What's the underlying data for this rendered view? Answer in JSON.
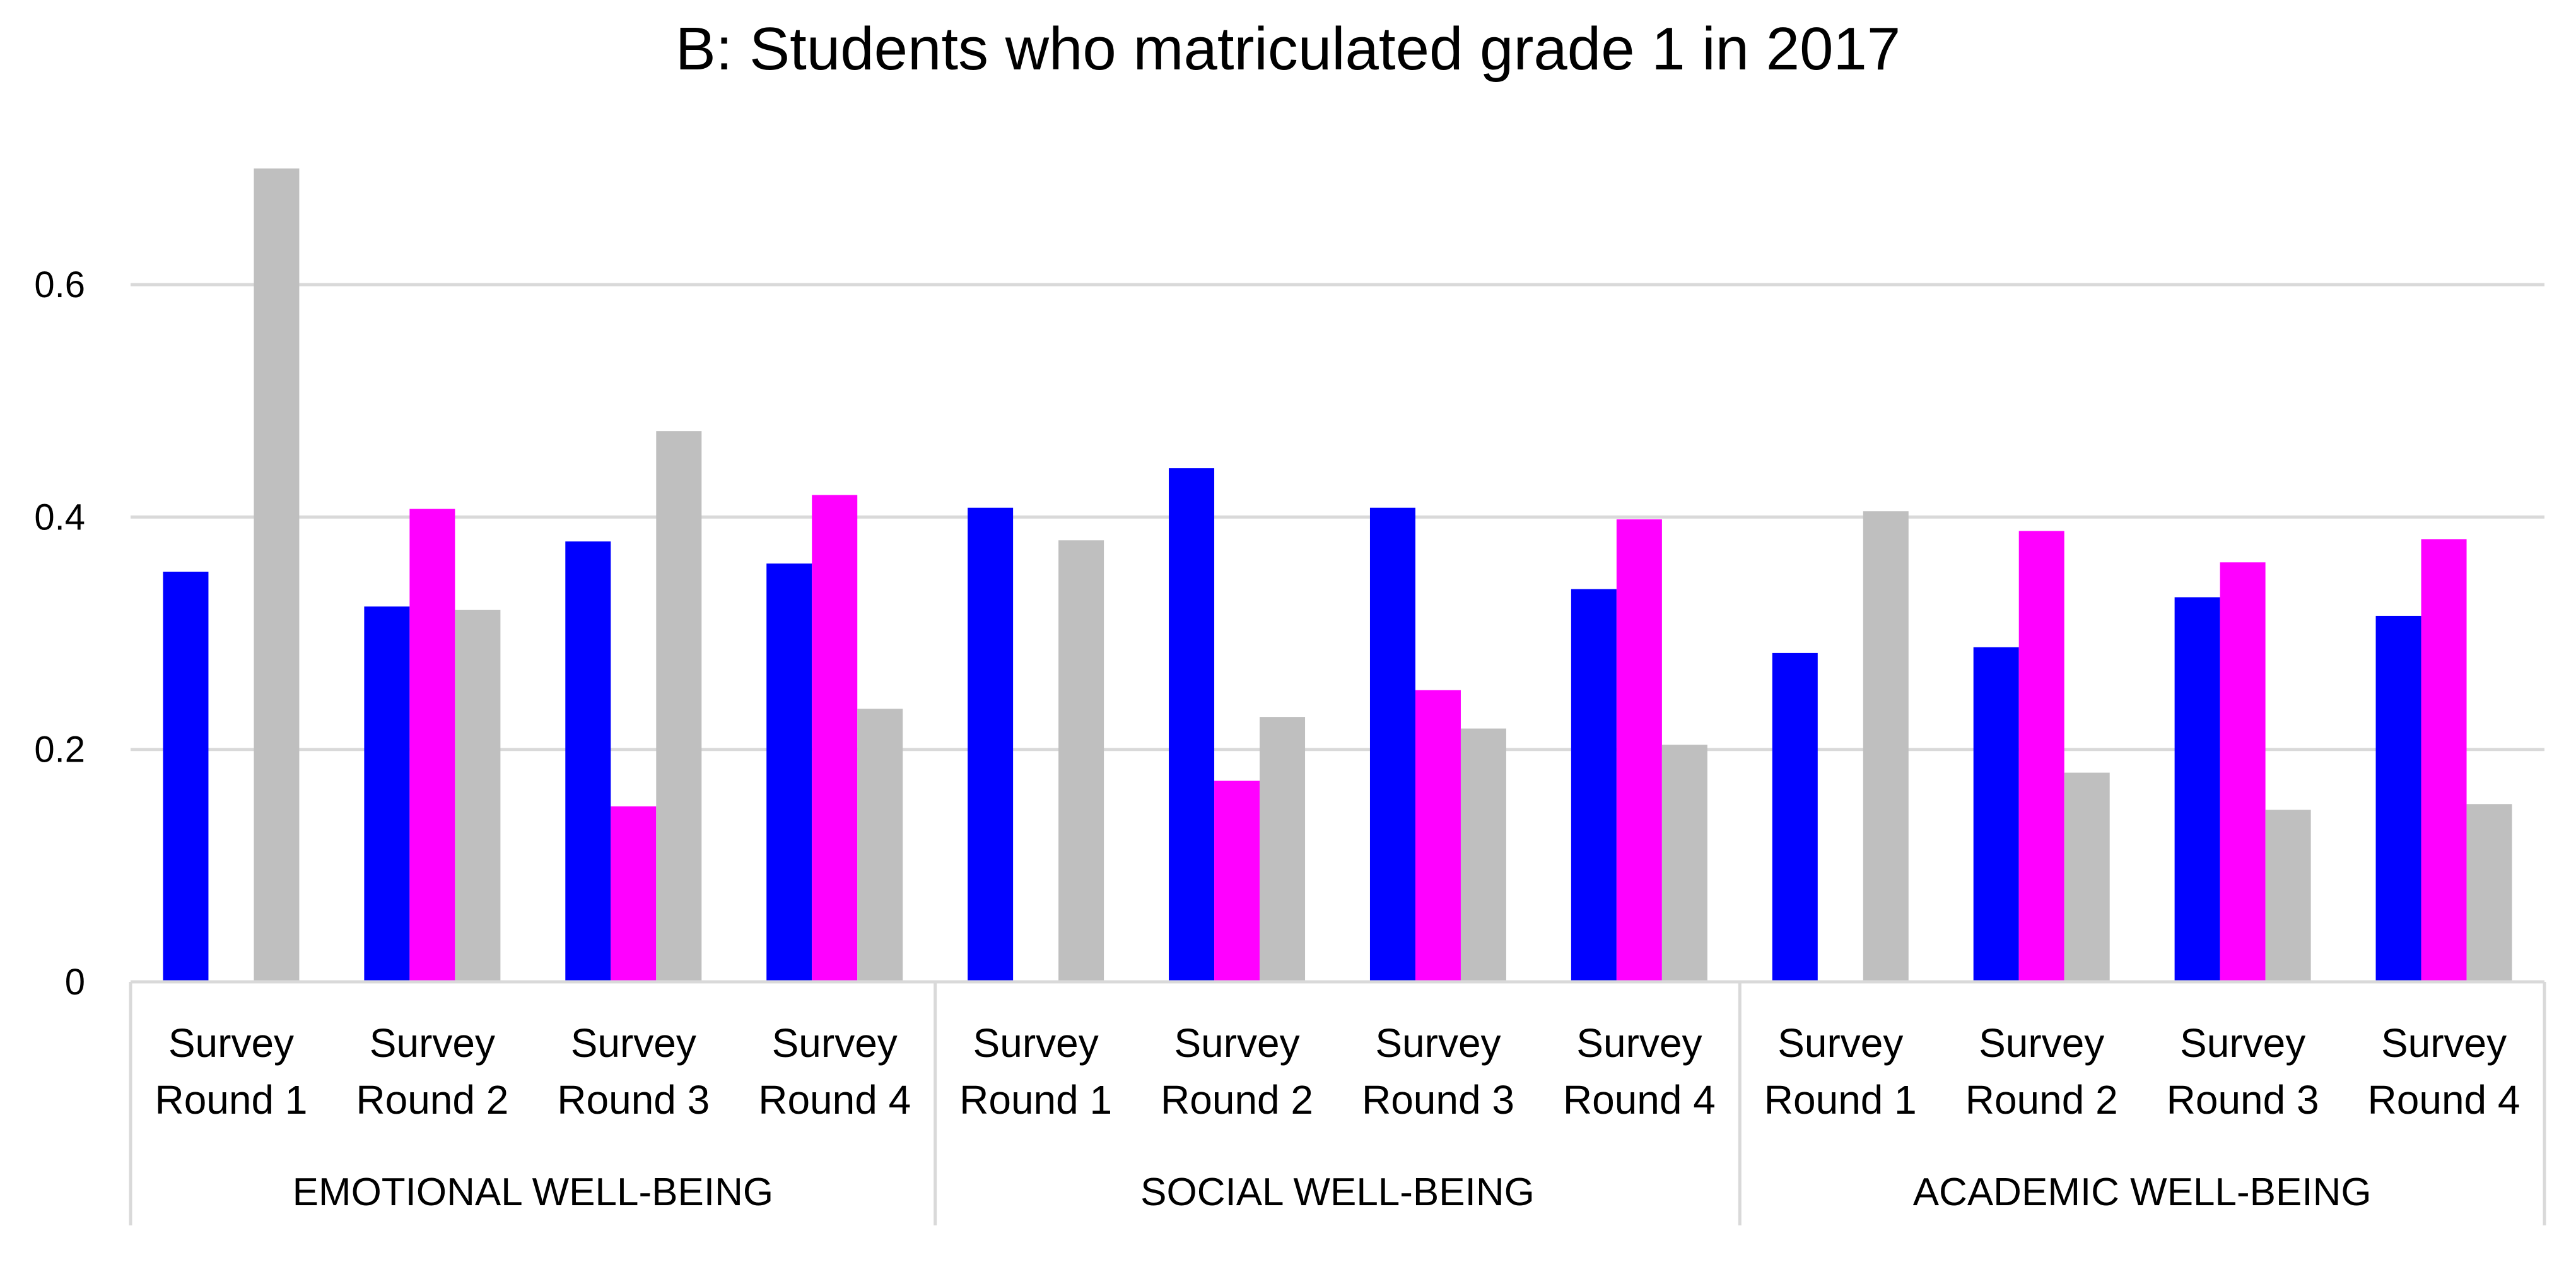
{
  "chart_data": {
    "type": "bar",
    "title": "B: Students who matriculated grade 1  in 2017",
    "xlabel": "",
    "ylabel": "",
    "ylim": [
      0,
      0.7
    ],
    "yticks": [
      0,
      0.2,
      0.4,
      0.6
    ],
    "ytick_labels": [
      "0",
      "0.2",
      "0.4",
      "0.6"
    ],
    "grid": true,
    "groups": [
      {
        "label": "EMOTIONAL WELL-BEING",
        "categories": [
          {
            "line1": "Survey",
            "line2": "Round 1"
          },
          {
            "line1": "Survey",
            "line2": "Round 2"
          },
          {
            "line1": "Survey",
            "line2": "Round 3"
          },
          {
            "line1": "Survey",
            "line2": "Round 4"
          }
        ]
      },
      {
        "label": "SOCIAL WELL-BEING",
        "categories": [
          {
            "line1": "Survey",
            "line2": "Round 1"
          },
          {
            "line1": "Survey",
            "line2": "Round 2"
          },
          {
            "line1": "Survey",
            "line2": "Round 3"
          },
          {
            "line1": "Survey",
            "line2": "Round 4"
          }
        ]
      },
      {
        "label": "ACADEMIC WELL-BEING",
        "categories": [
          {
            "line1": "Survey",
            "line2": "Round 1"
          },
          {
            "line1": "Survey",
            "line2": "Round 2"
          },
          {
            "line1": "Survey",
            "line2": "Round 3"
          },
          {
            "line1": "Survey",
            "line2": "Round 4"
          }
        ]
      }
    ],
    "series": [
      {
        "name": "series-blue",
        "color": "#0000ff",
        "values": [
          0.353,
          0.323,
          0.379,
          0.36,
          0.408,
          0.442,
          0.408,
          0.338,
          0.283,
          0.288,
          0.331,
          0.315
        ]
      },
      {
        "name": "series-magenta",
        "color": "#ff00ff",
        "values": [
          null,
          0.407,
          0.151,
          0.419,
          null,
          0.173,
          0.251,
          0.398,
          null,
          0.388,
          0.361,
          0.381
        ]
      },
      {
        "name": "series-gray",
        "color": "#bfbfbf",
        "values": [
          0.7,
          0.32,
          0.474,
          0.235,
          0.38,
          0.228,
          0.218,
          0.204,
          0.405,
          0.18,
          0.148,
          0.153
        ]
      }
    ]
  }
}
